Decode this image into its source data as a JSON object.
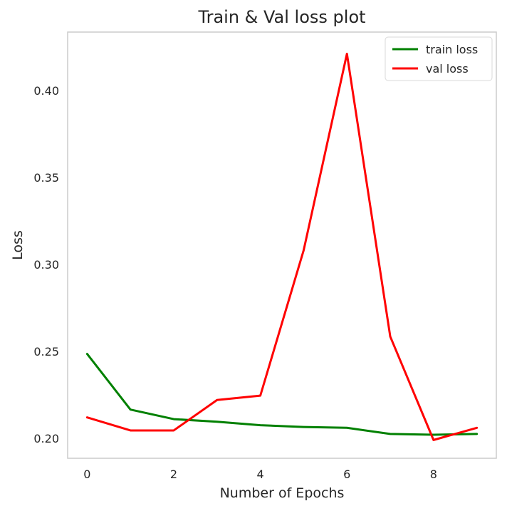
{
  "chart_data": {
    "type": "line",
    "title": "Train & Val loss plot",
    "xlabel": "Number of Epochs",
    "ylabel": "Loss",
    "x": [
      0,
      1,
      2,
      3,
      4,
      5,
      6,
      7,
      8,
      9
    ],
    "xlim": [
      -0.45,
      9.45
    ],
    "ylim": [
      0.1885,
      0.4335
    ],
    "x_ticks": [
      0,
      2,
      4,
      6,
      8
    ],
    "x_tick_labels": [
      "0",
      "2",
      "4",
      "6",
      "8"
    ],
    "y_ticks": [
      0.2,
      0.25,
      0.3,
      0.35,
      0.4
    ],
    "y_tick_labels": [
      "0.20",
      "0.25",
      "0.30",
      "0.35",
      "0.40"
    ],
    "grid": false,
    "legend_position": "top-right",
    "series": [
      {
        "name": "train loss",
        "color": "#008000",
        "values": [
          0.2485,
          0.2165,
          0.211,
          0.2095,
          0.2075,
          0.2065,
          0.206,
          0.2025,
          0.202,
          0.2025
        ]
      },
      {
        "name": "val loss",
        "color": "#ff0000",
        "values": [
          0.212,
          0.2045,
          0.2045,
          0.222,
          0.2245,
          0.308,
          0.421,
          0.2585,
          0.199,
          0.206
        ]
      }
    ]
  }
}
